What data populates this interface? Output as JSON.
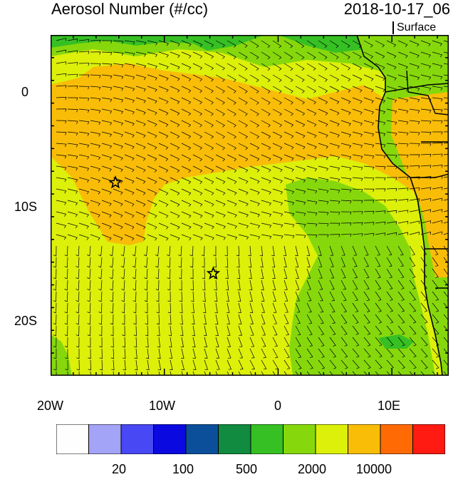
{
  "header": {
    "title": "Aerosol Number (#/cc)",
    "datetime": "2018-10-17_06",
    "level": "Surface"
  },
  "axes": {
    "x_ticks": [
      {
        "lon": -20,
        "label": "20W"
      },
      {
        "lon": -10,
        "label": "10W"
      },
      {
        "lon": 0,
        "label": "0"
      },
      {
        "lon": 10,
        "label": "10E"
      }
    ],
    "y_ticks": [
      {
        "lat": 0,
        "label": "0"
      },
      {
        "lat": -10,
        "label": "10S"
      },
      {
        "lat": -20,
        "label": "20S"
      }
    ],
    "lon_range": [
      -20,
      15
    ],
    "lat_range": [
      -25,
      5
    ]
  },
  "markers": [
    {
      "name": "star-marker",
      "lon": -14.3,
      "lat": -8
    },
    {
      "name": "star-marker",
      "lon": -5.7,
      "lat": -16
    }
  ],
  "colorbar": {
    "colors": [
      "#fefefe",
      "#a3a3f7",
      "#4848f5",
      "#0a0ae0",
      "#0b4f9b",
      "#108b3f",
      "#36c023",
      "#86d80c",
      "#dcf00a",
      "#f9bd08",
      "#ff6a05",
      "#ff1a12"
    ],
    "labels": [
      "20",
      "100",
      "500",
      "2000",
      "10000"
    ]
  },
  "colors": {
    "orange": "#f9bd08",
    "yellow_green": "#dcf00a",
    "green": "#86d80c",
    "dark_green": "#36c023"
  }
}
